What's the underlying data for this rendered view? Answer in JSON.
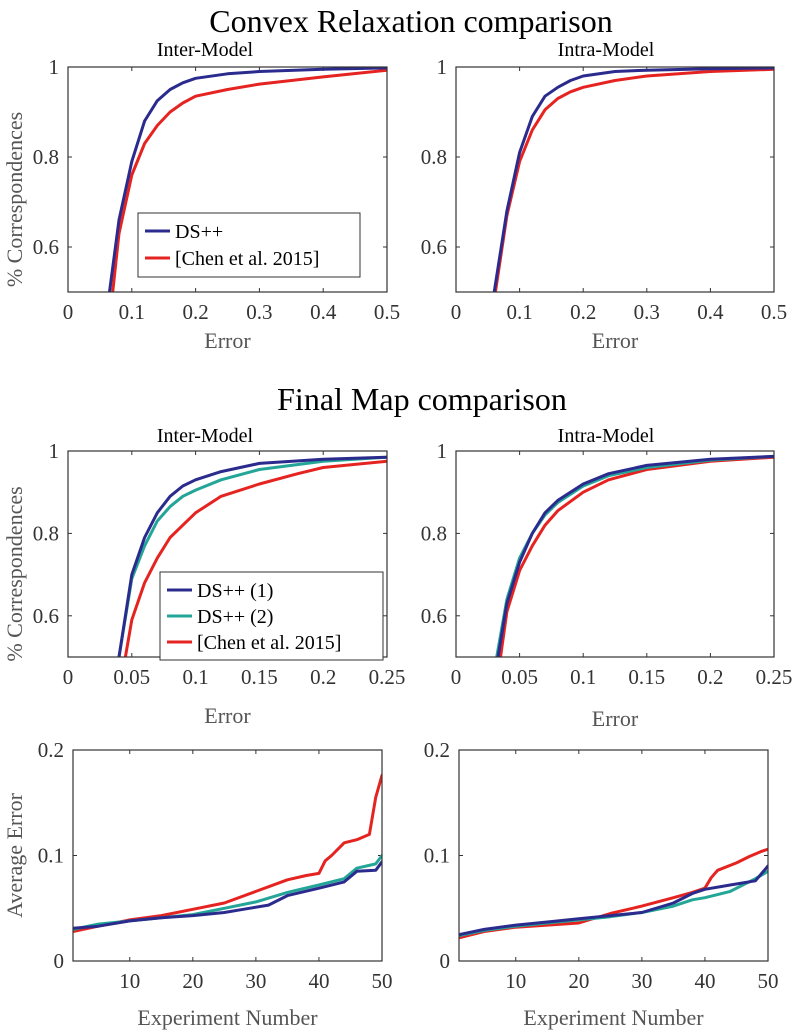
{
  "figure": {
    "section1_title": "Convex Relaxation comparison",
    "section2_title": "Final Map comparison",
    "colors": {
      "ds": "#2b2b8e",
      "ds2": "#23a597",
      "chen": "#e52421"
    }
  },
  "chart_data": [
    {
      "id": "p1",
      "type": "line",
      "title": "Inter-Model",
      "xlabel": "Error",
      "ylabel": "% Correspondences",
      "xlim": [
        0,
        0.5
      ],
      "ylim": [
        0.5,
        1.0
      ],
      "xticks": [
        "0",
        "0.1",
        "0.2",
        "0.3",
        "0.4",
        "0.5"
      ],
      "yticks": [
        "0.6",
        "0.8",
        "1"
      ],
      "legend": [
        "DS++",
        "[Chen et al. 2015]"
      ],
      "series": [
        {
          "name": "DS++",
          "color": "#2b2b8e",
          "x": [
            0.065,
            0.08,
            0.1,
            0.12,
            0.14,
            0.16,
            0.18,
            0.2,
            0.25,
            0.3,
            0.4,
            0.5
          ],
          "y": [
            0.5,
            0.66,
            0.79,
            0.88,
            0.925,
            0.95,
            0.965,
            0.975,
            0.985,
            0.99,
            0.995,
            0.998
          ]
        },
        {
          "name": "[Chen et al. 2015]",
          "color": "#e52421",
          "x": [
            0.07,
            0.08,
            0.1,
            0.12,
            0.14,
            0.16,
            0.18,
            0.2,
            0.25,
            0.3,
            0.35,
            0.4,
            0.5
          ],
          "y": [
            0.5,
            0.63,
            0.76,
            0.83,
            0.87,
            0.9,
            0.92,
            0.935,
            0.95,
            0.962,
            0.97,
            0.978,
            0.993
          ]
        }
      ]
    },
    {
      "id": "p2",
      "type": "line",
      "title": "Intra-Model",
      "xlabel": "Error",
      "ylabel": "",
      "xlim": [
        0,
        0.5
      ],
      "ylim": [
        0.5,
        1.0
      ],
      "xticks": [
        "0",
        "0.1",
        "0.2",
        "0.3",
        "0.4",
        "0.5"
      ],
      "yticks": [
        "0.6",
        "0.8",
        "1"
      ],
      "legend": [],
      "series": [
        {
          "name": "DS++",
          "color": "#2b2b8e",
          "x": [
            0.06,
            0.08,
            0.1,
            0.12,
            0.14,
            0.16,
            0.18,
            0.2,
            0.25,
            0.3,
            0.4,
            0.5
          ],
          "y": [
            0.5,
            0.68,
            0.81,
            0.89,
            0.935,
            0.955,
            0.97,
            0.98,
            0.99,
            0.993,
            0.996,
            0.998
          ]
        },
        {
          "name": "[Chen et al. 2015]",
          "color": "#e52421",
          "x": [
            0.062,
            0.08,
            0.1,
            0.12,
            0.14,
            0.16,
            0.18,
            0.2,
            0.25,
            0.3,
            0.4,
            0.5
          ],
          "y": [
            0.5,
            0.67,
            0.79,
            0.86,
            0.905,
            0.93,
            0.945,
            0.955,
            0.97,
            0.98,
            0.99,
            0.995
          ]
        }
      ]
    },
    {
      "id": "p3",
      "type": "line",
      "title": "Inter-Model",
      "xlabel": "Error",
      "ylabel": "% Correspondences",
      "xlim": [
        0,
        0.25
      ],
      "ylim": [
        0.5,
        1.0
      ],
      "xticks": [
        "0",
        "0.05",
        "0.1",
        "0.15",
        "0.2",
        "0.25"
      ],
      "yticks": [
        "0.6",
        "0.8",
        "1"
      ],
      "legend": [
        "DS++ (1)",
        "DS++ (2)",
        "[Chen et al. 2015]"
      ],
      "series": [
        {
          "name": "DS++ (1)",
          "color": "#2b2b8e",
          "x": [
            0.04,
            0.05,
            0.06,
            0.07,
            0.08,
            0.09,
            0.1,
            0.12,
            0.15,
            0.2,
            0.25
          ],
          "y": [
            0.5,
            0.7,
            0.79,
            0.85,
            0.89,
            0.915,
            0.93,
            0.95,
            0.97,
            0.98,
            0.985
          ]
        },
        {
          "name": "DS++ (2)",
          "color": "#23a597",
          "x": [
            0.04,
            0.05,
            0.06,
            0.07,
            0.08,
            0.09,
            0.1,
            0.12,
            0.15,
            0.2,
            0.25
          ],
          "y": [
            0.5,
            0.69,
            0.77,
            0.83,
            0.865,
            0.89,
            0.905,
            0.93,
            0.955,
            0.975,
            0.985
          ]
        },
        {
          "name": "[Chen et al. 2015]",
          "color": "#e52421",
          "x": [
            0.045,
            0.05,
            0.06,
            0.07,
            0.08,
            0.09,
            0.1,
            0.12,
            0.15,
            0.18,
            0.2,
            0.25
          ],
          "y": [
            0.5,
            0.59,
            0.68,
            0.74,
            0.79,
            0.82,
            0.85,
            0.89,
            0.92,
            0.945,
            0.96,
            0.975
          ]
        }
      ]
    },
    {
      "id": "p4",
      "type": "line",
      "title": "Intra-Model",
      "xlabel": "Error",
      "ylabel": "",
      "xlim": [
        0,
        0.25
      ],
      "ylim": [
        0.5,
        1.0
      ],
      "xticks": [
        "0",
        "0.05",
        "0.1",
        "0.15",
        "0.2",
        "0.25"
      ],
      "yticks": [
        "0.6",
        "0.8",
        "1"
      ],
      "legend": [],
      "series": [
        {
          "name": "DS++ (1)",
          "color": "#2b2b8e",
          "x": [
            0.033,
            0.04,
            0.05,
            0.06,
            0.07,
            0.08,
            0.1,
            0.12,
            0.15,
            0.2,
            0.25
          ],
          "y": [
            0.5,
            0.63,
            0.73,
            0.8,
            0.85,
            0.88,
            0.92,
            0.945,
            0.965,
            0.98,
            0.987
          ]
        },
        {
          "name": "DS++ (2)",
          "color": "#23a597",
          "x": [
            0.032,
            0.04,
            0.05,
            0.06,
            0.07,
            0.08,
            0.1,
            0.12,
            0.15,
            0.2,
            0.25
          ],
          "y": [
            0.5,
            0.64,
            0.74,
            0.8,
            0.845,
            0.875,
            0.915,
            0.94,
            0.96,
            0.978,
            0.987
          ]
        },
        {
          "name": "[Chen et al. 2015]",
          "color": "#e52421",
          "x": [
            0.035,
            0.04,
            0.05,
            0.06,
            0.07,
            0.08,
            0.1,
            0.12,
            0.15,
            0.2,
            0.25
          ],
          "y": [
            0.5,
            0.61,
            0.71,
            0.77,
            0.82,
            0.855,
            0.9,
            0.93,
            0.955,
            0.975,
            0.985
          ]
        }
      ]
    },
    {
      "id": "p5",
      "type": "line",
      "title": "",
      "xlabel": "Experiment Number",
      "ylabel": "Average Error",
      "xlim": [
        1,
        50
      ],
      "ylim": [
        0,
        0.2
      ],
      "xticks": [
        "10",
        "20",
        "30",
        "40",
        "50"
      ],
      "yticks": [
        "0",
        "0.1",
        "0.2"
      ],
      "legend": [],
      "series": [
        {
          "name": "DS++ (1)",
          "color": "#2b2b8e",
          "x": [
            1,
            5,
            10,
            15,
            20,
            25,
            28,
            32,
            35,
            40,
            44,
            46,
            49,
            50
          ],
          "y": [
            0.031,
            0.033,
            0.038,
            0.041,
            0.043,
            0.046,
            0.049,
            0.053,
            0.062,
            0.069,
            0.075,
            0.085,
            0.086,
            0.094
          ]
        },
        {
          "name": "DS++ (2)",
          "color": "#23a597",
          "x": [
            1,
            5,
            10,
            15,
            20,
            25,
            30,
            35,
            40,
            44,
            46,
            49,
            50
          ],
          "y": [
            0.03,
            0.035,
            0.038,
            0.041,
            0.044,
            0.05,
            0.056,
            0.065,
            0.072,
            0.078,
            0.088,
            0.092,
            0.1
          ]
        },
        {
          "name": "[Chen et al. 2015]",
          "color": "#e52421",
          "x": [
            1,
            5,
            10,
            15,
            20,
            25,
            30,
            35,
            38,
            40,
            41,
            42,
            44,
            46,
            48,
            49,
            50
          ],
          "y": [
            0.028,
            0.033,
            0.039,
            0.043,
            0.049,
            0.055,
            0.066,
            0.077,
            0.081,
            0.083,
            0.095,
            0.1,
            0.112,
            0.115,
            0.12,
            0.155,
            0.176
          ]
        }
      ]
    },
    {
      "id": "p6",
      "type": "line",
      "title": "",
      "xlabel": "Experiment Number",
      "ylabel": "",
      "xlim": [
        1,
        50
      ],
      "ylim": [
        0,
        0.2
      ],
      "xticks": [
        "10",
        "20",
        "30",
        "40",
        "50"
      ],
      "yticks": [
        "0",
        "0.1",
        "0.2"
      ],
      "legend": [],
      "series": [
        {
          "name": "DS++ (1)",
          "color": "#2b2b8e",
          "x": [
            1,
            5,
            10,
            15,
            20,
            25,
            30,
            35,
            38,
            40,
            44,
            48,
            50
          ],
          "y": [
            0.025,
            0.03,
            0.034,
            0.037,
            0.04,
            0.043,
            0.046,
            0.055,
            0.064,
            0.068,
            0.072,
            0.076,
            0.09
          ]
        },
        {
          "name": "DS++ (2)",
          "color": "#23a597",
          "x": [
            1,
            5,
            10,
            15,
            20,
            25,
            30,
            35,
            38,
            40,
            44,
            48,
            50
          ],
          "y": [
            0.024,
            0.029,
            0.033,
            0.036,
            0.039,
            0.042,
            0.046,
            0.052,
            0.058,
            0.06,
            0.066,
            0.078,
            0.085
          ]
        },
        {
          "name": "[Chen et al. 2015]",
          "color": "#e52421",
          "x": [
            1,
            5,
            10,
            15,
            20,
            25,
            30,
            35,
            38,
            40,
            41,
            42,
            45,
            47,
            49,
            50
          ],
          "y": [
            0.022,
            0.028,
            0.032,
            0.034,
            0.036,
            0.045,
            0.052,
            0.06,
            0.065,
            0.069,
            0.079,
            0.086,
            0.093,
            0.099,
            0.104,
            0.106
          ]
        }
      ]
    }
  ]
}
